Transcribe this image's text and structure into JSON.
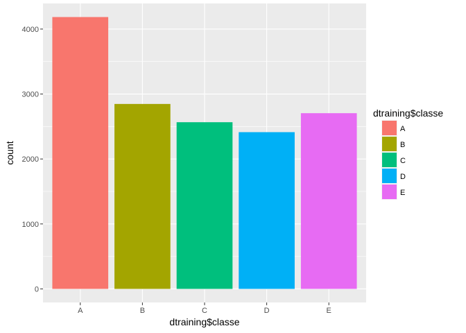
{
  "chart_data": {
    "type": "bar",
    "categories": [
      "A",
      "B",
      "C",
      "D",
      "E"
    ],
    "values": [
      4185,
      2847,
      2566,
      2413,
      2705
    ],
    "colors": [
      "#F8766D",
      "#A3A500",
      "#00BF7D",
      "#00B0F6",
      "#E76BF3"
    ],
    "xlabel": "dtraining$classe",
    "ylabel": "count",
    "ylim": [
      -209,
      4394
    ],
    "yticks": [
      0,
      1000,
      2000,
      3000,
      4000
    ],
    "grid": true,
    "panel_background": "#EBEBEB",
    "grid_color": "#FFFFFF",
    "legend": {
      "title": "dtraining$classe",
      "placement": "right",
      "items": [
        "A",
        "B",
        "C",
        "D",
        "E"
      ]
    }
  }
}
